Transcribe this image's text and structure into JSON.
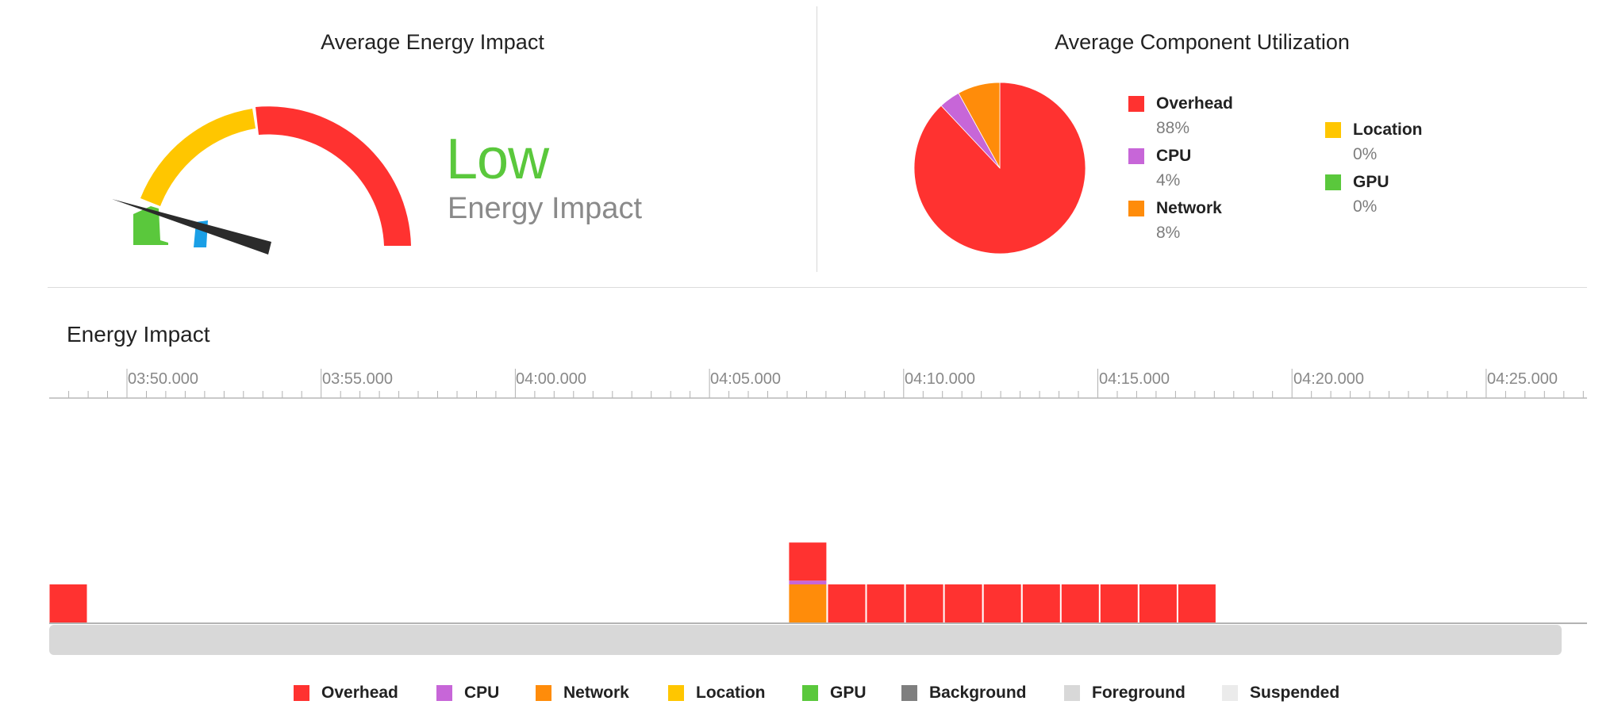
{
  "gauge_panel": {
    "title": "Average Energy Impact",
    "level": "Low",
    "level_label": "Energy Impact",
    "level_color": "#5ac83c"
  },
  "utilization_panel": {
    "title": "Average Component Utilization",
    "items": [
      {
        "name": "Overhead",
        "pct": "88%",
        "color": "#ff3230"
      },
      {
        "name": "CPU",
        "pct": "4%",
        "color": "#c766d8"
      },
      {
        "name": "Network",
        "pct": "8%",
        "color": "#ff8c0a"
      },
      {
        "name": "Location",
        "pct": "0%",
        "color": "#ffc600"
      },
      {
        "name": "GPU",
        "pct": "0%",
        "color": "#5ac83c"
      }
    ]
  },
  "timeline": {
    "title": "Energy Impact",
    "tick_labels": [
      "03:50.000",
      "03:55.000",
      "04:00.000",
      "04:05.000",
      "04:10.000",
      "04:15.000",
      "04:20.000",
      "04:25.000"
    ],
    "bars": [
      {
        "slot": 0,
        "overhead": 1,
        "cpu": 0,
        "network": 0
      },
      {
        "slot": 19,
        "overhead": 1,
        "cpu": 0.1,
        "network": 1
      },
      {
        "slot": 20,
        "overhead": 1,
        "cpu": 0,
        "network": 0
      },
      {
        "slot": 21,
        "overhead": 1,
        "cpu": 0,
        "network": 0
      },
      {
        "slot": 22,
        "overhead": 1,
        "cpu": 0,
        "network": 0
      },
      {
        "slot": 23,
        "overhead": 1,
        "cpu": 0,
        "network": 0
      },
      {
        "slot": 24,
        "overhead": 1,
        "cpu": 0,
        "network": 0
      },
      {
        "slot": 25,
        "overhead": 1,
        "cpu": 0,
        "network": 0
      },
      {
        "slot": 26,
        "overhead": 1,
        "cpu": 0,
        "network": 0
      },
      {
        "slot": 27,
        "overhead": 1,
        "cpu": 0,
        "network": 0
      },
      {
        "slot": 28,
        "overhead": 1,
        "cpu": 0,
        "network": 0
      },
      {
        "slot": 29,
        "overhead": 1,
        "cpu": 0,
        "network": 0
      }
    ]
  },
  "bottom_legend": [
    {
      "name": "Overhead",
      "color": "#ff3230"
    },
    {
      "name": "CPU",
      "color": "#c766d8"
    },
    {
      "name": "Network",
      "color": "#ff8c0a"
    },
    {
      "name": "Location",
      "color": "#ffc600"
    },
    {
      "name": "GPU",
      "color": "#5ac83c"
    },
    {
      "name": "Background",
      "color": "#7f7f7f"
    },
    {
      "name": "Foreground",
      "color": "#d8d8d8"
    },
    {
      "name": "Suspended",
      "color": "#ebebeb"
    }
  ]
}
